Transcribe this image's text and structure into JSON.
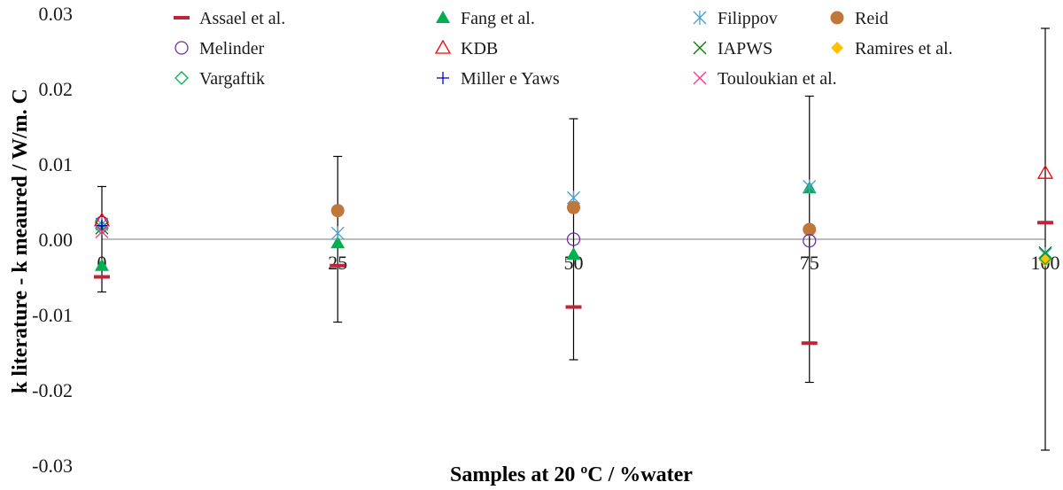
{
  "chart_data": {
    "type": "scatter",
    "title": "",
    "xlabel": "Samples at 20 ºC / %water",
    "ylabel": "k literature - k meaured / W/m. C",
    "x_categories": [
      0,
      25,
      50,
      75,
      100
    ],
    "xlim": [
      0,
      100
    ],
    "ylim": [
      -0.03,
      0.03
    ],
    "y_ticks": [
      "0.03",
      "0.02",
      "0.01",
      "0.00",
      "-0.01",
      "-0.02",
      "-0.03"
    ],
    "grid": false,
    "legend_position": "top",
    "error_bars": [
      {
        "x": 0,
        "low": -0.007,
        "high": 0.007
      },
      {
        "x": 25,
        "low": -0.011,
        "high": 0.011
      },
      {
        "x": 50,
        "low": -0.016,
        "high": 0.016
      },
      {
        "x": 75,
        "low": -0.019,
        "high": 0.019
      },
      {
        "x": 100,
        "low": -0.028,
        "high": 0.028
      }
    ],
    "series": [
      {
        "name": "Assael et al.",
        "marker": "dash",
        "color": "#c0243a",
        "points": [
          [
            0,
            -0.005
          ],
          [
            25,
            -0.0035
          ],
          [
            50,
            -0.009
          ],
          [
            75,
            -0.0138
          ],
          [
            100,
            0.0022
          ]
        ]
      },
      {
        "name": "Fang et al.",
        "marker": "triangle-filled",
        "color": "#00b050",
        "points": [
          [
            0,
            -0.0035
          ],
          [
            25,
            -0.0005
          ],
          [
            50,
            -0.002
          ],
          [
            75,
            0.0068
          ]
        ]
      },
      {
        "name": "Filippov",
        "marker": "asterisk",
        "color": "#4aa0d0",
        "points": [
          [
            0,
            0.002
          ],
          [
            25,
            0.0008
          ],
          [
            50,
            0.0055
          ],
          [
            75,
            0.007
          ],
          [
            100,
            -0.002
          ]
        ]
      },
      {
        "name": "Reid",
        "marker": "circle-filled",
        "color": "#c0773a",
        "points": [
          [
            25,
            0.0038
          ],
          [
            50,
            0.0042
          ],
          [
            75,
            0.0013
          ]
        ]
      },
      {
        "name": "Melinder",
        "marker": "circle-open",
        "color": "#7030a0",
        "points": [
          [
            0,
            0.0022
          ],
          [
            50,
            0.0
          ],
          [
            75,
            -0.0002
          ]
        ]
      },
      {
        "name": "KDB",
        "marker": "triangle-open",
        "color": "#ff0000",
        "points": [
          [
            0,
            0.0025
          ],
          [
            100,
            0.0088
          ]
        ]
      },
      {
        "name": "IAPWS",
        "marker": "x",
        "color": "#008000",
        "points": [
          [
            0,
            0.0015
          ],
          [
            100,
            -0.0018
          ]
        ]
      },
      {
        "name": "Ramires et al.",
        "marker": "diamond-filled",
        "color": "#ffc000",
        "points": [
          [
            100,
            -0.0028
          ]
        ]
      },
      {
        "name": "Vargaftik",
        "marker": "diamond-open",
        "color": "#00b050",
        "points": [
          [
            0,
            0.0015
          ],
          [
            100,
            -0.0025
          ]
        ]
      },
      {
        "name": "Miller e Yaws",
        "marker": "plus",
        "color": "#0000cc",
        "points": [
          [
            0,
            0.0018
          ]
        ]
      },
      {
        "name": "Touloukian et al.",
        "marker": "x",
        "color": "#ff3399",
        "points": [
          [
            0,
            0.001
          ]
        ]
      }
    ]
  }
}
